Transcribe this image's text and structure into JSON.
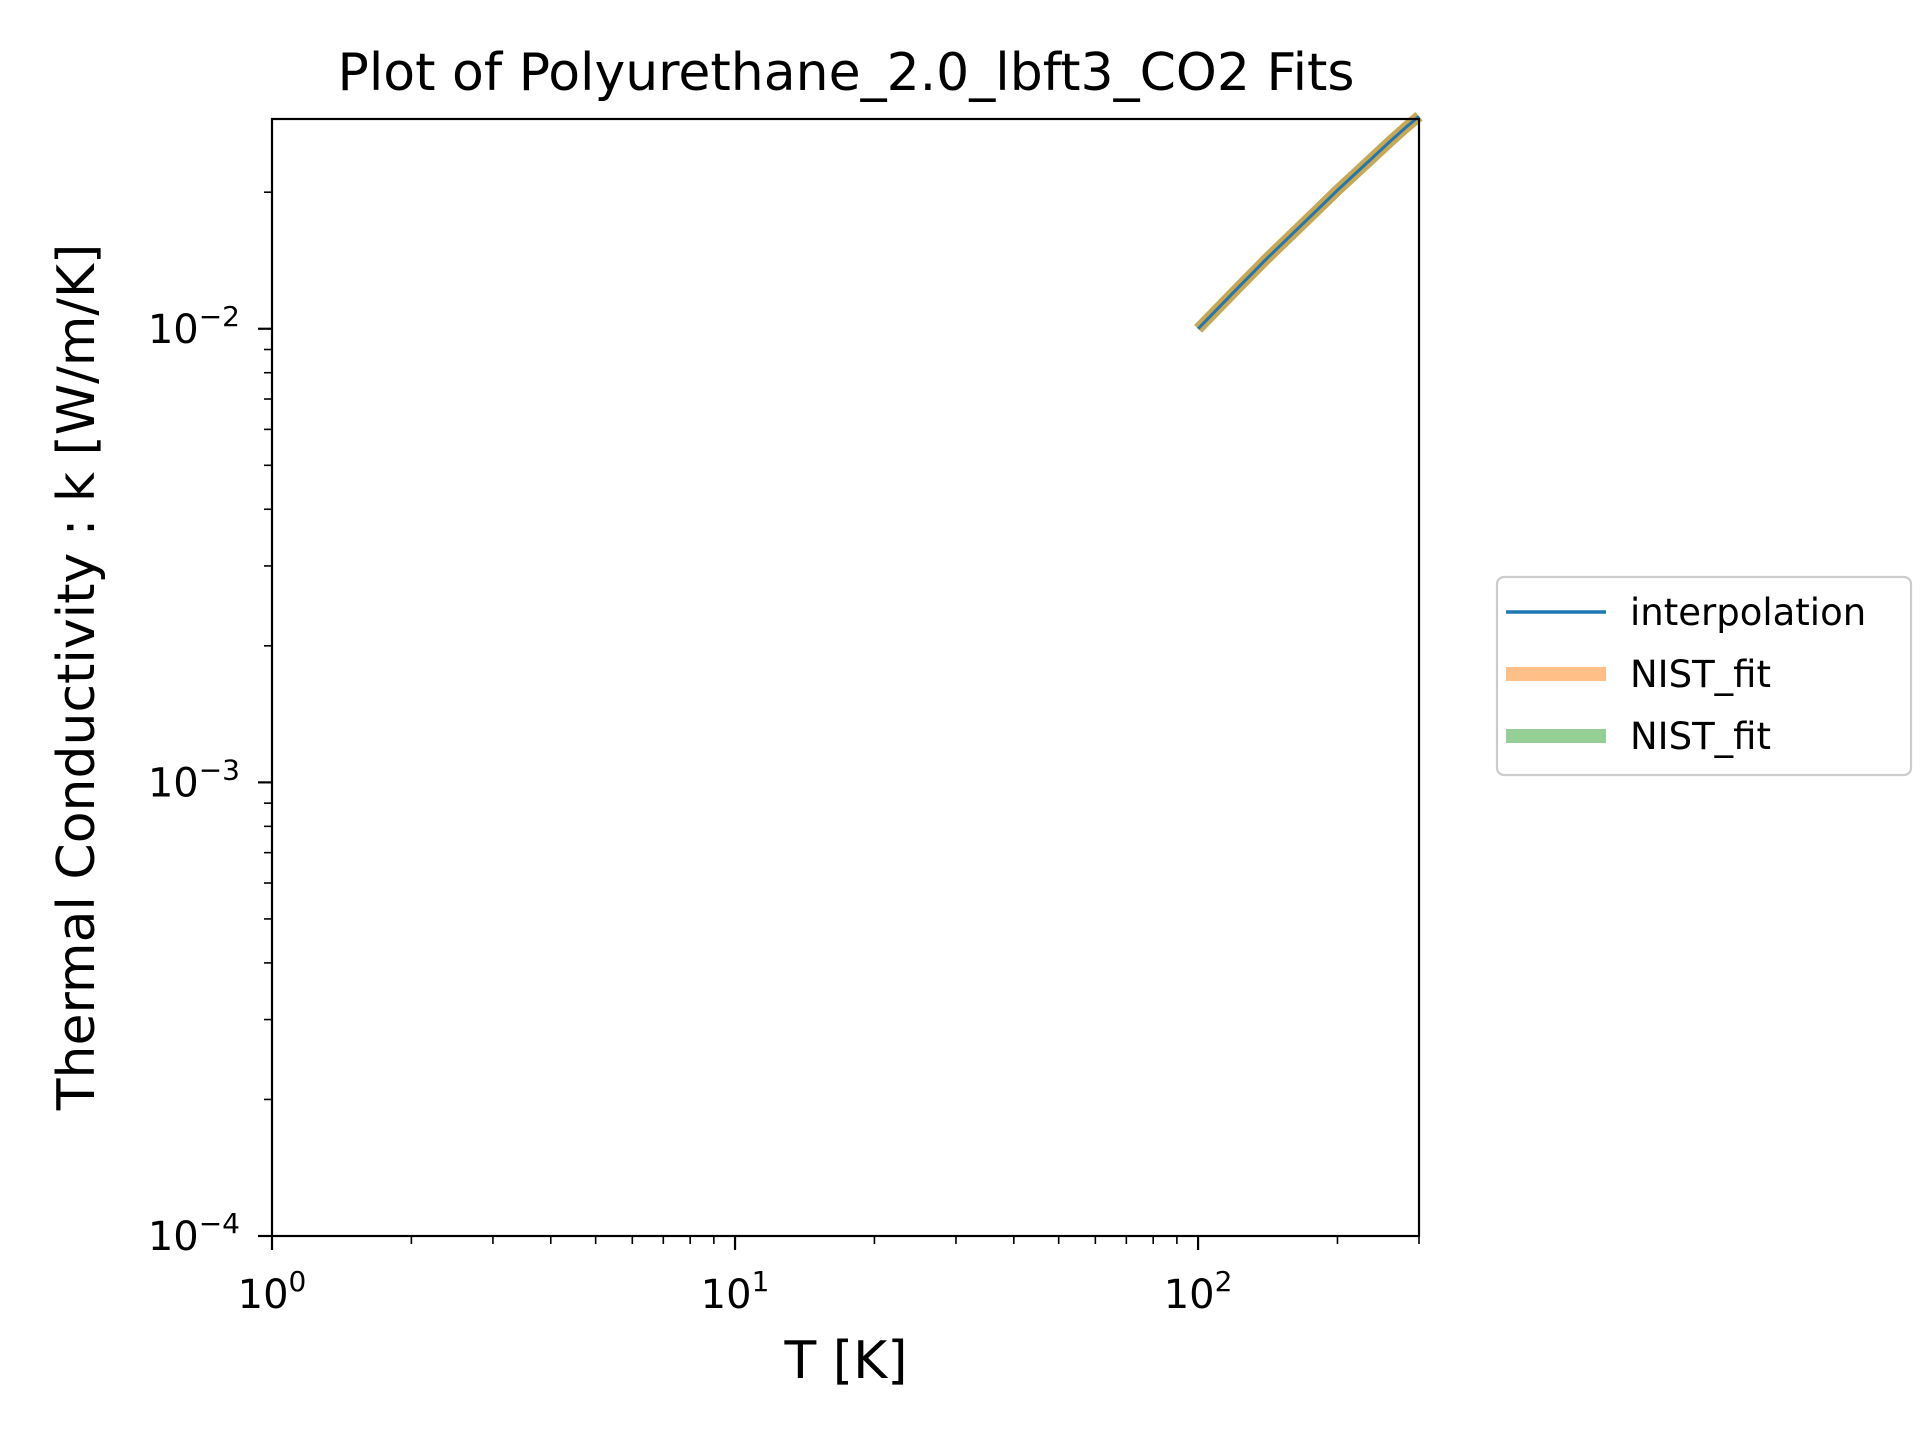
{
  "chart_data": {
    "type": "line",
    "title": "Plot of Polyurethane_2.0_lbft3_CO2 Fits",
    "xlabel": "T [K]",
    "ylabel": "Thermal Conductivity : k [W/m/K]",
    "xscale": "log",
    "yscale": "log",
    "xlim": [
      1,
      300
    ],
    "ylim": [
      0.0001,
      0.029
    ],
    "grid": false,
    "legend_position": "outside-right",
    "x_ticks": [
      {
        "value": 1,
        "base": "10",
        "exp": "0"
      },
      {
        "value": 10,
        "base": "10",
        "exp": "1"
      },
      {
        "value": 100,
        "base": "10",
        "exp": "2"
      }
    ],
    "y_ticks": [
      {
        "value": 0.0001,
        "base": "10",
        "exp": "−4"
      },
      {
        "value": 0.001,
        "base": "10",
        "exp": "−3"
      },
      {
        "value": 0.01,
        "base": "10",
        "exp": "−2"
      }
    ],
    "series": [
      {
        "name": "interpolation",
        "color": "#1f77b4",
        "width": 3,
        "opacity": 1,
        "x": [
          100,
          120,
          140,
          160,
          180,
          200,
          220,
          240,
          260,
          280,
          300
        ],
        "y": [
          0.01,
          0.0121,
          0.0142,
          0.0162,
          0.0182,
          0.0202,
          0.0221,
          0.024,
          0.0259,
          0.0277,
          0.0294
        ]
      },
      {
        "name": "NIST_fit",
        "color": "#ff7f0e",
        "width": 11,
        "opacity": 0.5,
        "x": [
          100,
          120,
          140,
          160,
          180,
          200,
          220,
          240,
          260,
          280,
          300
        ],
        "y": [
          0.01,
          0.0121,
          0.0142,
          0.0162,
          0.0182,
          0.0202,
          0.0221,
          0.024,
          0.0259,
          0.0277,
          0.0294
        ]
      },
      {
        "name": "NIST_fit",
        "color": "#2ca02c",
        "width": 11,
        "opacity": 0.5,
        "x": [
          100,
          120,
          140,
          160,
          180,
          200,
          220,
          240,
          260,
          280,
          300
        ],
        "y": [
          0.01,
          0.0121,
          0.0142,
          0.0162,
          0.0182,
          0.0202,
          0.0221,
          0.024,
          0.0259,
          0.0277,
          0.0294
        ]
      }
    ]
  }
}
